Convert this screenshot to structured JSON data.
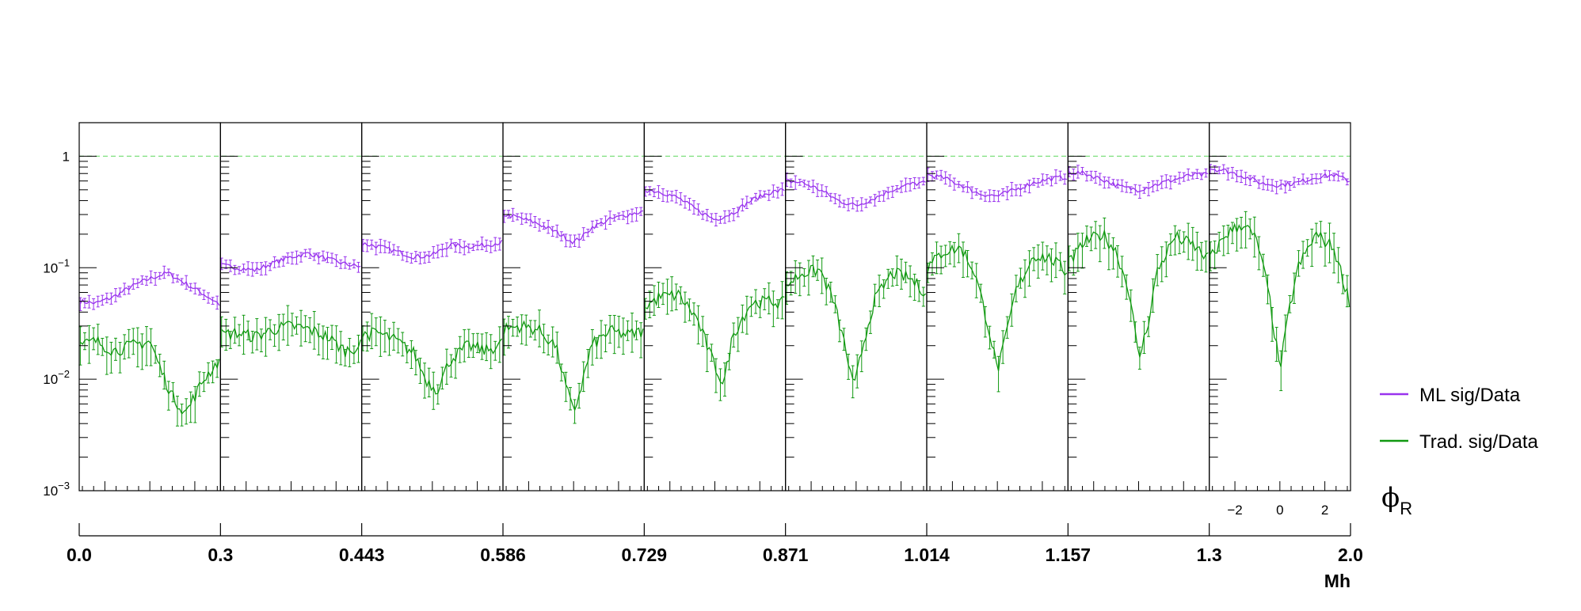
{
  "chart_data": {
    "type": "line",
    "y_scale": "log",
    "ylim": [
      0.001,
      2
    ],
    "y_ticks": [
      {
        "value": 1,
        "label": "1"
      },
      {
        "value": 0.1,
        "label": "10",
        "exp": "−1"
      },
      {
        "value": 0.01,
        "label": "10",
        "exp": "−2"
      },
      {
        "value": 0.001,
        "label": "10",
        "exp": "−3"
      }
    ],
    "reference_line": 1,
    "x_quantity": "phi_R",
    "phi_axis": {
      "xlim": [
        -3.1416,
        3.1416
      ],
      "ticks": [
        -2,
        0,
        2
      ],
      "tick_labels": [
        "−2",
        "0",
        "2"
      ],
      "label": "ϕ",
      "label_sub": "R"
    },
    "mh_axis": {
      "label": "Mh",
      "bin_edges": [
        "0.0",
        "0.3",
        "0.443",
        "0.586",
        "0.729",
        "0.871",
        "1.014",
        "1.157",
        "1.3",
        "2.0"
      ]
    },
    "legend_placement": "right",
    "series": [
      {
        "name": "ML sig/Data",
        "color": "#9933ee",
        "panels": [
          {
            "x": [
              -3.1,
              -2.4,
              -1.6,
              -0.8,
              0,
              0.8,
              1.6,
              2.4,
              3.1
            ],
            "y": [
              0.05,
              0.048,
              0.055,
              0.068,
              0.08,
              0.09,
              0.072,
              0.058,
              0.047
            ]
          },
          {
            "x": [
              -3.1,
              -2.4,
              -1.6,
              -0.8,
              0,
              0.8,
              1.6,
              2.4,
              3.1
            ],
            "y": [
              0.105,
              0.1,
              0.095,
              0.11,
              0.125,
              0.135,
              0.12,
              0.108,
              0.102
            ]
          },
          {
            "x": [
              -3.1,
              -2.4,
              -1.6,
              -0.8,
              0,
              0.8,
              1.6,
              2.4,
              3.1
            ],
            "y": [
              0.165,
              0.155,
              0.14,
              0.125,
              0.13,
              0.16,
              0.155,
              0.16,
              0.17
            ]
          },
          {
            "x": [
              -3.1,
              -2.4,
              -1.6,
              -0.8,
              0,
              0.4,
              0.8,
              1.6,
              2.4,
              3.1
            ],
            "y": [
              0.3,
              0.28,
              0.25,
              0.21,
              0.17,
              0.19,
              0.23,
              0.27,
              0.3,
              0.32
            ]
          },
          {
            "x": [
              -3.1,
              -2.4,
              -1.6,
              -0.8,
              0,
              0.8,
              1.6,
              2.4,
              3.1
            ],
            "y": [
              0.5,
              0.48,
              0.42,
              0.33,
              0.27,
              0.31,
              0.4,
              0.47,
              0.5
            ]
          },
          {
            "x": [
              -3.1,
              -2.4,
              -1.6,
              -0.8,
              0,
              0.8,
              1.6,
              2.4,
              3.1
            ],
            "y": [
              0.6,
              0.58,
              0.5,
              0.4,
              0.36,
              0.42,
              0.5,
              0.56,
              0.58
            ]
          },
          {
            "x": [
              -3.1,
              -2.4,
              -1.6,
              -0.8,
              0,
              0.8,
              1.6,
              2.4,
              3.1
            ],
            "y": [
              0.68,
              0.64,
              0.55,
              0.46,
              0.44,
              0.5,
              0.58,
              0.63,
              0.65
            ]
          },
          {
            "x": [
              -3.1,
              -2.4,
              -1.6,
              -0.8,
              0,
              0.8,
              1.6,
              2.4,
              3.1
            ],
            "y": [
              0.72,
              0.7,
              0.62,
              0.53,
              0.5,
              0.56,
              0.62,
              0.68,
              0.68
            ]
          },
          {
            "x": [
              -3.1,
              -2.4,
              -1.6,
              -0.8,
              0,
              0.8,
              1.6,
              2.4,
              3.1
            ],
            "y": [
              0.78,
              0.74,
              0.66,
              0.57,
              0.55,
              0.58,
              0.65,
              0.68,
              0.6
            ]
          }
        ]
      },
      {
        "name": "Trad. sig/Data",
        "color": "#119911",
        "panels": [
          {
            "x": [
              -3.1,
              -2.4,
              -1.6,
              -0.8,
              0,
              0.5,
              1,
              1.6,
              2.4,
              3.1
            ],
            "y": [
              0.02,
              0.022,
              0.018,
              0.02,
              0.022,
              0.012,
              0.007,
              0.005,
              0.01,
              0.015
            ]
          },
          {
            "x": [
              -3.1,
              -2.4,
              -1.6,
              -0.8,
              0,
              0.8,
              1.6,
              2.4,
              3.1
            ],
            "y": [
              0.025,
              0.026,
              0.024,
              0.028,
              0.03,
              0.028,
              0.024,
              0.018,
              0.02
            ]
          },
          {
            "x": [
              -3.1,
              -2.4,
              -1.6,
              -0.8,
              -0.3,
              0.2,
              0.8,
              1.6,
              2.4,
              3.1
            ],
            "y": [
              0.025,
              0.026,
              0.022,
              0.017,
              0.01,
              0.008,
              0.015,
              0.02,
              0.018,
              0.021
            ]
          },
          {
            "x": [
              -3.1,
              -2.4,
              -1.6,
              -0.8,
              -0.3,
              0,
              0.3,
              0.8,
              1.6,
              2.4,
              3.1
            ],
            "y": [
              0.028,
              0.03,
              0.028,
              0.02,
              0.008,
              0.005,
              0.008,
              0.02,
              0.027,
              0.025,
              0.027
            ]
          },
          {
            "x": [
              -3.1,
              -2.4,
              -1.6,
              -0.8,
              0,
              0.4,
              0.8,
              1.6,
              2.4,
              3.1
            ],
            "y": [
              0.045,
              0.055,
              0.057,
              0.035,
              0.013,
              0.009,
              0.025,
              0.048,
              0.05,
              0.048
            ]
          },
          {
            "x": [
              -3.1,
              -2.4,
              -1.6,
              -1,
              -0.5,
              -0.1,
              0.3,
              0.8,
              1.6,
              2.4,
              3.1
            ],
            "y": [
              0.07,
              0.09,
              0.095,
              0.05,
              0.02,
              0.008,
              0.02,
              0.05,
              0.09,
              0.08,
              0.06
            ]
          },
          {
            "x": [
              -3.1,
              -2.4,
              -1.6,
              -1,
              -0.4,
              0,
              0.3,
              0.8,
              1.6,
              2.4,
              3.1
            ],
            "y": [
              0.1,
              0.14,
              0.15,
              0.09,
              0.03,
              0.012,
              0.02,
              0.06,
              0.13,
              0.12,
              0.09
            ]
          },
          {
            "x": [
              -3.1,
              -2.4,
              -1.6,
              -1,
              -0.4,
              0,
              0.4,
              0.8,
              1.6,
              2.4,
              3.1
            ],
            "y": [
              0.11,
              0.17,
              0.2,
              0.14,
              0.06,
              0.015,
              0.03,
              0.09,
              0.19,
              0.16,
              0.12
            ]
          },
          {
            "x": [
              -3.1,
              -2.4,
              -1.6,
              -1,
              -0.5,
              0,
              0.4,
              0.8,
              1.6,
              2.4,
              3.1
            ],
            "y": [
              0.12,
              0.2,
              0.25,
              0.17,
              0.06,
              0.012,
              0.04,
              0.1,
              0.2,
              0.15,
              0.05
            ]
          }
        ]
      }
    ]
  }
}
